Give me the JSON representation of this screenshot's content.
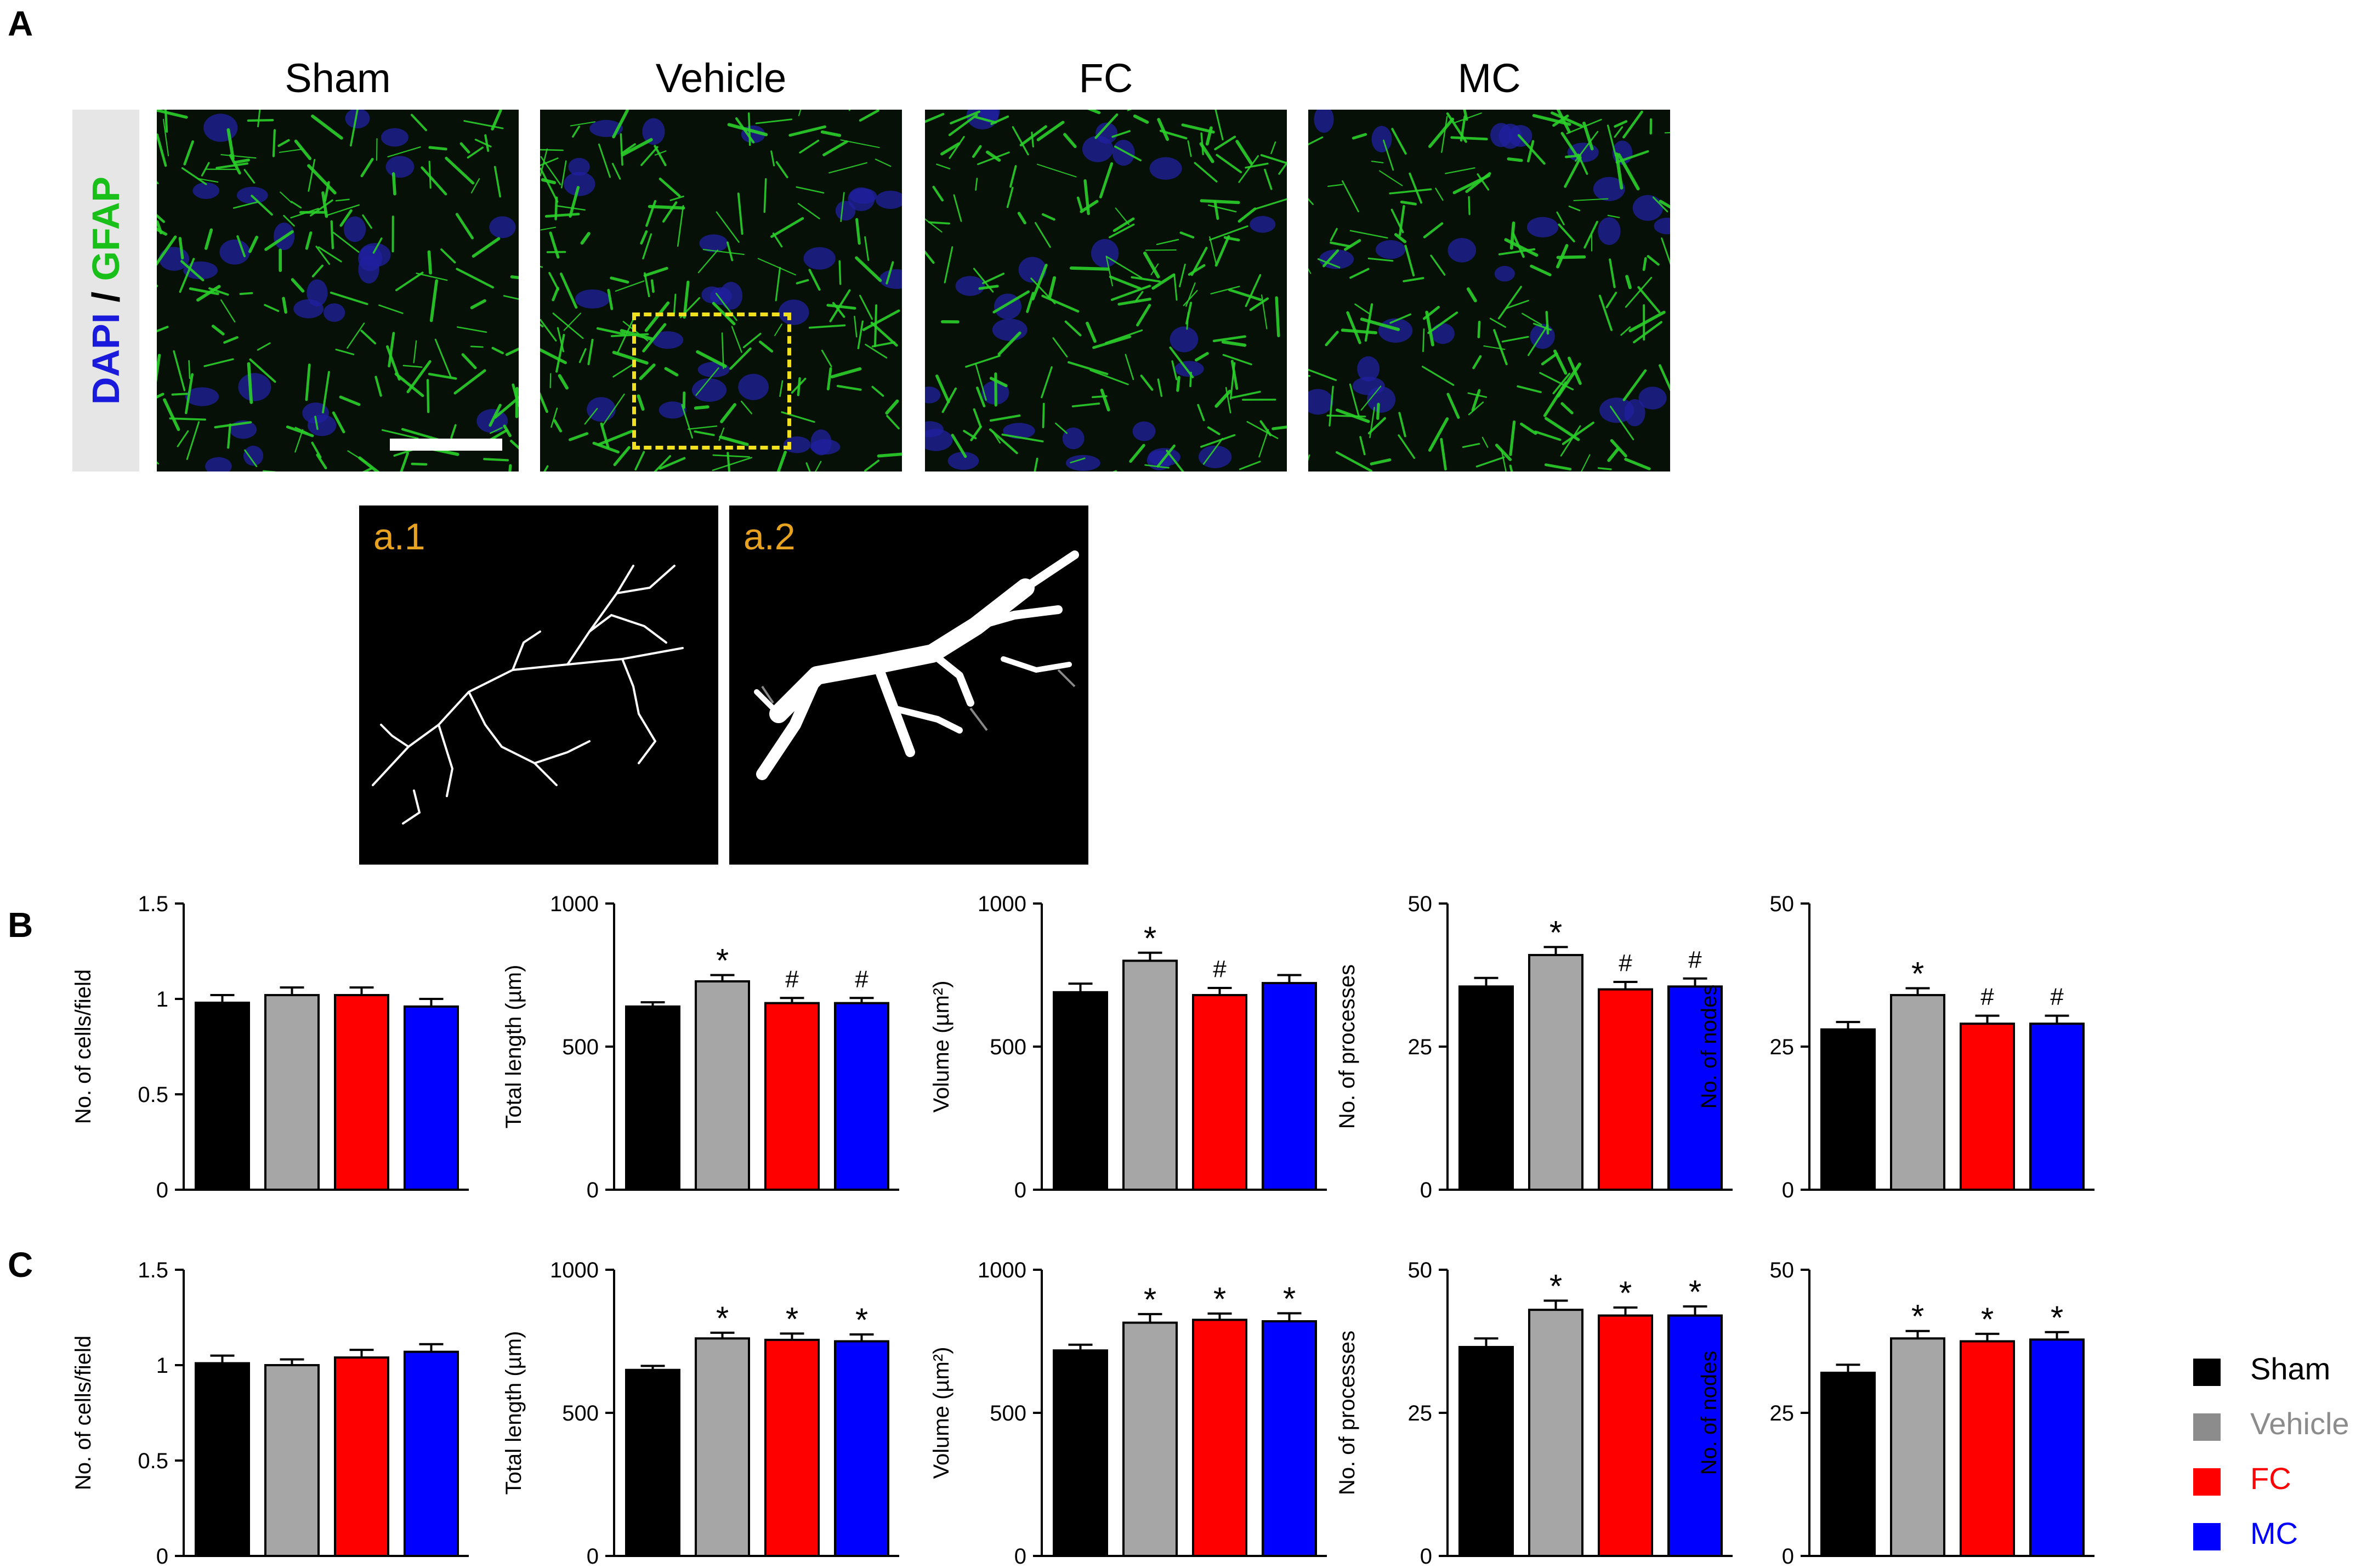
{
  "panels": {
    "a": "A",
    "b": "B",
    "c": "C"
  },
  "stain": {
    "dapi": "DAPI",
    "slash": " / ",
    "gfap": "GFAP"
  },
  "micro_titles": [
    "Sham",
    "Vehicle",
    "FC",
    "MC"
  ],
  "insets": [
    "a.1",
    "a.2"
  ],
  "legend": [
    {
      "label": "Sham",
      "color": "#000000",
      "text_color": "#000000"
    },
    {
      "label": "Vehicle",
      "color": "#8c8c8c",
      "text_color": "#8c8c8c"
    },
    {
      "label": "FC",
      "color": "#ff0000",
      "text_color": "#ff0000"
    },
    {
      "label": "MC",
      "color": "#0000ff",
      "text_color": "#0000ff"
    }
  ],
  "chart_data": [
    {
      "type": "bar",
      "row": "B",
      "categories": [
        "Sham",
        "Vehicle",
        "FC",
        "MC"
      ],
      "ylabel": "No. of cells/field",
      "ylim": [
        0,
        1.5
      ],
      "yticks": [
        0,
        0.5,
        1,
        1.5
      ],
      "ytick_labels": [
        "0",
        "0.5",
        "1",
        "1.5"
      ],
      "values": [
        0.98,
        1.02,
        1.02,
        0.96
      ],
      "errors": [
        0.04,
        0.04,
        0.04,
        0.04
      ],
      "marks": [
        "",
        "",
        "",
        ""
      ]
    },
    {
      "type": "bar",
      "row": "B",
      "categories": [
        "Sham",
        "Vehicle",
        "FC",
        "MC"
      ],
      "ylabel": "Total length (µm)",
      "ylim": [
        0,
        1000
      ],
      "yticks": [
        0,
        500,
        1000
      ],
      "ytick_labels": [
        "0",
        "500",
        "1000"
      ],
      "values": [
        640,
        728,
        652,
        652
      ],
      "errors": [
        15,
        22,
        18,
        18
      ],
      "marks": [
        "",
        "*",
        "#",
        "#"
      ]
    },
    {
      "type": "bar",
      "row": "B",
      "categories": [
        "Sham",
        "Vehicle",
        "FC",
        "MC"
      ],
      "ylabel": "Volume (µm²)",
      "ylim": [
        0,
        1000
      ],
      "yticks": [
        0,
        500,
        1000
      ],
      "ytick_labels": [
        "0",
        "500",
        "1000"
      ],
      "values": [
        690,
        800,
        680,
        722
      ],
      "errors": [
        30,
        28,
        25,
        28
      ],
      "marks": [
        "",
        "*",
        "#",
        ""
      ]
    },
    {
      "type": "bar",
      "row": "B",
      "categories": [
        "Sham",
        "Vehicle",
        "FC",
        "MC"
      ],
      "ylabel": "No. of processes",
      "ylim": [
        0,
        50
      ],
      "yticks": [
        0,
        25,
        50
      ],
      "ytick_labels": [
        "0",
        "25",
        "50"
      ],
      "values": [
        35.5,
        41,
        35,
        35.5
      ],
      "errors": [
        1.5,
        1.4,
        1.3,
        1.4
      ],
      "marks": [
        "",
        "*",
        "#",
        "#"
      ]
    },
    {
      "type": "bar",
      "row": "B",
      "categories": [
        "Sham",
        "Vehicle",
        "FC",
        "MC"
      ],
      "ylabel": "No. of nodes",
      "ylim": [
        0,
        50
      ],
      "yticks": [
        0,
        25,
        50
      ],
      "ytick_labels": [
        "0",
        "25",
        "50"
      ],
      "values": [
        28,
        34,
        29,
        29
      ],
      "errors": [
        1.3,
        1.2,
        1.4,
        1.4
      ],
      "marks": [
        "",
        "*",
        "#",
        "#"
      ]
    },
    {
      "type": "bar",
      "row": "C",
      "categories": [
        "Sham",
        "Vehicle",
        "FC",
        "MC"
      ],
      "ylabel": "No. of cells/field",
      "ylim": [
        0,
        1.5
      ],
      "yticks": [
        0,
        0.5,
        1,
        1.5
      ],
      "ytick_labels": [
        "0",
        "0.5",
        "1",
        "1.5"
      ],
      "values": [
        1.01,
        1.0,
        1.04,
        1.07
      ],
      "errors": [
        0.04,
        0.03,
        0.04,
        0.04
      ],
      "marks": [
        "",
        "",
        "",
        ""
      ]
    },
    {
      "type": "bar",
      "row": "C",
      "categories": [
        "Sham",
        "Vehicle",
        "FC",
        "MC"
      ],
      "ylabel": "Total length (µm)",
      "ylim": [
        0,
        1000
      ],
      "yticks": [
        0,
        500,
        1000
      ],
      "ytick_labels": [
        "0",
        "500",
        "1000"
      ],
      "values": [
        650,
        760,
        755,
        750
      ],
      "errors": [
        14,
        20,
        22,
        24
      ],
      "marks": [
        "",
        "*",
        "*",
        "*"
      ]
    },
    {
      "type": "bar",
      "row": "C",
      "categories": [
        "Sham",
        "Vehicle",
        "FC",
        "MC"
      ],
      "ylabel": "Volume (µm²)",
      "ylim": [
        0,
        1000
      ],
      "yticks": [
        0,
        500,
        1000
      ],
      "ytick_labels": [
        "0",
        "500",
        "1000"
      ],
      "values": [
        718,
        815,
        825,
        820
      ],
      "errors": [
        20,
        30,
        22,
        28
      ],
      "marks": [
        "",
        "*",
        "*",
        "*"
      ]
    },
    {
      "type": "bar",
      "row": "C",
      "categories": [
        "Sham",
        "Vehicle",
        "FC",
        "MC"
      ],
      "ylabel": "No. of processes",
      "ylim": [
        0,
        50
      ],
      "yticks": [
        0,
        25,
        50
      ],
      "ytick_labels": [
        "0",
        "25",
        "50"
      ],
      "values": [
        36.5,
        43,
        42,
        42
      ],
      "errors": [
        1.5,
        1.6,
        1.4,
        1.6
      ],
      "marks": [
        "",
        "*",
        "*",
        "*"
      ]
    },
    {
      "type": "bar",
      "row": "C",
      "categories": [
        "Sham",
        "Vehicle",
        "FC",
        "MC"
      ],
      "ylabel": "No. of nodes",
      "ylim": [
        0,
        50
      ],
      "yticks": [
        0,
        25,
        50
      ],
      "ytick_labels": [
        "0",
        "25",
        "50"
      ],
      "values": [
        32,
        38,
        37.5,
        37.8
      ],
      "errors": [
        1.4,
        1.3,
        1.3,
        1.3
      ],
      "marks": [
        "",
        "*",
        "*",
        "*"
      ]
    }
  ],
  "bar_colors": [
    "#000000",
    "#a6a6a6",
    "#ff0000",
    "#0000ff"
  ]
}
